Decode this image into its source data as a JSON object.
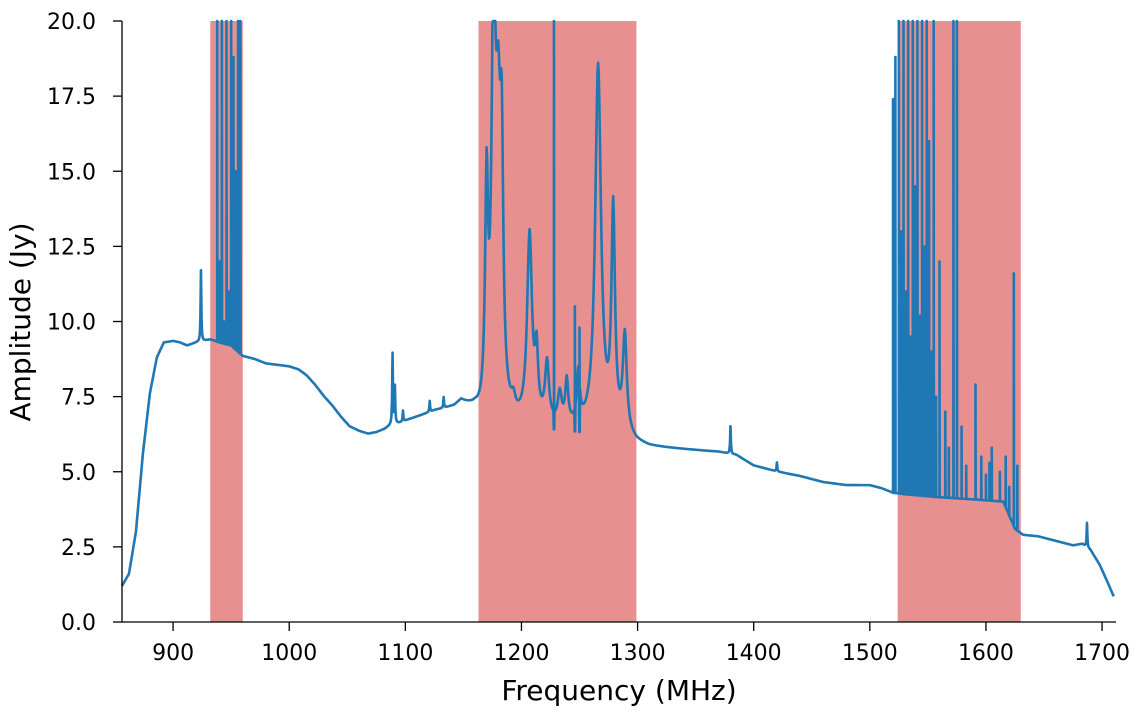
{
  "chart_data": {
    "type": "line",
    "title": "",
    "xlabel": "Frequency (MHz)",
    "ylabel": "Amplitude (Jy)",
    "xlim": [
      856,
      1712
    ],
    "ylim": [
      0,
      20
    ],
    "x_ticks": [
      900,
      1000,
      1100,
      1200,
      1300,
      1400,
      1500,
      1600,
      1700
    ],
    "x_tick_labels": [
      "900",
      "1000",
      "1100",
      "1200",
      "1300",
      "1400",
      "1500",
      "1600",
      "1700"
    ],
    "y_ticks": [
      0,
      2.5,
      5,
      7.5,
      10,
      12.5,
      15,
      17.5,
      20
    ],
    "y_tick_labels": [
      "0.0",
      "2.5",
      "5.0",
      "7.5",
      "10.0",
      "12.5",
      "15.0",
      "17.5",
      "20.0"
    ],
    "grid": false,
    "legend": "none",
    "colors": {
      "line": "#1f77b4",
      "band": "#e88f8f"
    },
    "flagged_bands": [
      {
        "x0": 932,
        "x1": 960
      },
      {
        "x0": 1163,
        "x1": 1299
      },
      {
        "x0": 1524,
        "x1": 1630
      }
    ],
    "baseline": [
      [
        856,
        1.2
      ],
      [
        862,
        1.6
      ],
      [
        868,
        3.0
      ],
      [
        874,
        5.6
      ],
      [
        880,
        7.6
      ],
      [
        886,
        8.8
      ],
      [
        892,
        9.3
      ],
      [
        900,
        9.35
      ],
      [
        906,
        9.3
      ],
      [
        912,
        9.2
      ],
      [
        920,
        9.3
      ],
      [
        926,
        9.35
      ],
      [
        932,
        9.4
      ],
      [
        940,
        9.3
      ],
      [
        950,
        9.2
      ],
      [
        960,
        8.85
      ],
      [
        970,
        8.75
      ],
      [
        980,
        8.6
      ],
      [
        990,
        8.55
      ],
      [
        1000,
        8.5
      ],
      [
        1008,
        8.4
      ],
      [
        1015,
        8.2
      ],
      [
        1022,
        7.9
      ],
      [
        1030,
        7.5
      ],
      [
        1037,
        7.2
      ],
      [
        1045,
        6.8
      ],
      [
        1052,
        6.5
      ],
      [
        1060,
        6.35
      ],
      [
        1068,
        6.25
      ],
      [
        1075,
        6.3
      ],
      [
        1082,
        6.4
      ],
      [
        1088,
        6.55
      ],
      [
        1095,
        6.6
      ],
      [
        1102,
        6.7
      ],
      [
        1110,
        6.8
      ],
      [
        1118,
        6.9
      ],
      [
        1126,
        7.0
      ],
      [
        1134,
        7.05
      ],
      [
        1142,
        7.1
      ],
      [
        1148,
        7.25
      ],
      [
        1155,
        7.05
      ],
      [
        1160,
        6.9
      ],
      [
        1165,
        6.6
      ],
      [
        1172,
        6.5
      ],
      [
        1185,
        6.5
      ],
      [
        1200,
        6.45
      ],
      [
        1215,
        6.5
      ],
      [
        1230,
        6.4
      ],
      [
        1245,
        6.35
      ],
      [
        1255,
        6.3
      ],
      [
        1270,
        6.25
      ],
      [
        1285,
        6.2
      ],
      [
        1299,
        5.9
      ],
      [
        1310,
        5.8
      ],
      [
        1330,
        5.75
      ],
      [
        1350,
        5.7
      ],
      [
        1370,
        5.65
      ],
      [
        1385,
        5.55
      ],
      [
        1400,
        5.2
      ],
      [
        1420,
        5.0
      ],
      [
        1440,
        4.85
      ],
      [
        1460,
        4.65
      ],
      [
        1480,
        4.55
      ],
      [
        1500,
        4.55
      ],
      [
        1510,
        4.45
      ],
      [
        1520,
        4.3
      ],
      [
        1530,
        4.25
      ],
      [
        1545,
        4.2
      ],
      [
        1560,
        4.15
      ],
      [
        1580,
        4.1
      ],
      [
        1600,
        4.05
      ],
      [
        1615,
        4.0
      ],
      [
        1625,
        3.1
      ],
      [
        1632,
        2.9
      ],
      [
        1645,
        2.85
      ],
      [
        1660,
        2.7
      ],
      [
        1675,
        2.55
      ],
      [
        1683,
        2.6
      ],
      [
        1690,
        2.4
      ],
      [
        1698,
        1.9
      ],
      [
        1705,
        1.3
      ],
      [
        1710,
        0.85
      ]
    ],
    "narrow_peaks": [
      [
        924,
        11.7
      ],
      [
        1089,
        8.9
      ],
      [
        1091,
        7.8
      ],
      [
        1098,
        7.0
      ],
      [
        1121,
        7.3
      ],
      [
        1133,
        7.4
      ],
      [
        1380,
        6.5
      ],
      [
        1420,
        5.3
      ],
      [
        1687,
        3.3
      ]
    ],
    "broad_peaks": [
      [
        1170,
        13.8,
        1.5
      ],
      [
        1176,
        20.0,
        2.0
      ],
      [
        1180,
        15.0,
        2.5
      ],
      [
        1183,
        13.5,
        1.5
      ],
      [
        1193,
        6.9,
        2.0
      ],
      [
        1207,
        12.7,
        2.5
      ],
      [
        1213,
        8.5,
        1.5
      ],
      [
        1222,
        8.4,
        2.0
      ],
      [
        1233,
        7.4,
        2.0
      ],
      [
        1239,
        7.8,
        1.5
      ],
      [
        1249,
        8.0,
        1.5
      ],
      [
        1266,
        18.4,
        3.0
      ],
      [
        1279,
        13.4,
        1.8
      ],
      [
        1289,
        9.3,
        2.0
      ]
    ],
    "spikes": [
      [
        938,
        20.0
      ],
      [
        940,
        12.0
      ],
      [
        942,
        20.0
      ],
      [
        944,
        10.0
      ],
      [
        946,
        20.0
      ],
      [
        948,
        11.0
      ],
      [
        950,
        20.0
      ],
      [
        952,
        18.8
      ],
      [
        954,
        15.0
      ],
      [
        956,
        20.0
      ],
      [
        958,
        20.0
      ],
      [
        1228,
        20.0
      ],
      [
        1246,
        10.5
      ],
      [
        1250,
        9.8
      ],
      [
        1520,
        17.4
      ],
      [
        1522,
        18.8
      ],
      [
        1525,
        20.0
      ],
      [
        1527,
        13.0
      ],
      [
        1529,
        20.0
      ],
      [
        1531,
        11.0
      ],
      [
        1533,
        20.0
      ],
      [
        1535,
        9.5
      ],
      [
        1537,
        20.0
      ],
      [
        1539,
        14.5
      ],
      [
        1541,
        20.0
      ],
      [
        1543,
        10.2
      ],
      [
        1545,
        20.0
      ],
      [
        1547,
        12.5
      ],
      [
        1549,
        20.0
      ],
      [
        1551,
        16.0
      ],
      [
        1553,
        9.0
      ],
      [
        1555,
        20.0
      ],
      [
        1557,
        7.5
      ],
      [
        1560,
        12.0
      ],
      [
        1565,
        7.0
      ],
      [
        1568,
        5.8
      ],
      [
        1572,
        20.0
      ],
      [
        1575,
        20.0
      ],
      [
        1579,
        6.5
      ],
      [
        1583,
        5.2
      ],
      [
        1591,
        7.9
      ],
      [
        1596,
        5.5
      ],
      [
        1600,
        4.9
      ],
      [
        1603,
        5.3
      ],
      [
        1605,
        5.8
      ],
      [
        1612,
        5.0
      ],
      [
        1617,
        5.5
      ],
      [
        1620,
        4.5
      ],
      [
        1624,
        11.6
      ],
      [
        1627,
        5.2
      ]
    ]
  }
}
